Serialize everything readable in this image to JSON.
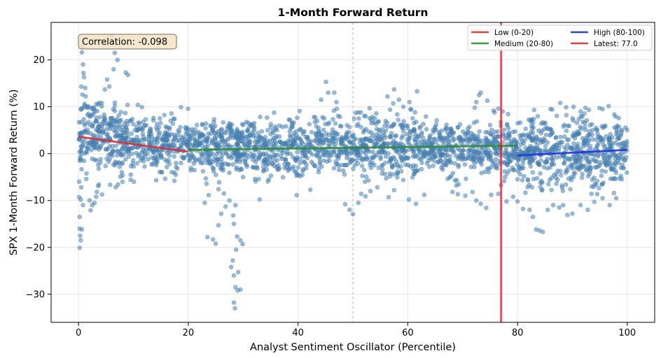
{
  "chart_data": {
    "type": "scatter",
    "title": "1-Month Forward Return",
    "xlabel": "Analyst Sentiment Oscillator (Percentile)",
    "ylabel": "SPX 1-Month Forward Return (%)",
    "xlim": [
      -5,
      105
    ],
    "ylim": [
      -36,
      28
    ],
    "x_ticks": [
      0,
      20,
      40,
      60,
      80,
      100
    ],
    "y_ticks": [
      -30,
      -20,
      -10,
      0,
      10,
      20
    ],
    "grid": true,
    "legend_placement": "upper-right",
    "point_color": "#4682b4",
    "annotation": "Correlation: -0.098",
    "reference_lines": [
      {
        "name": "Latest: 77.0",
        "type": "vertical",
        "x": 77.0,
        "color": "#e31a1c"
      },
      {
        "type": "vertical",
        "x": 50,
        "style": "dashed",
        "color": "#bbbbbb"
      }
    ],
    "trend_lines": [
      {
        "name": "Low (0-20)",
        "color": "#d62f3b",
        "x": [
          0,
          20
        ],
        "y": [
          3.6,
          0.4
        ]
      },
      {
        "name": "Medium (20-80)",
        "color": "#2e8b3a",
        "x": [
          20,
          80
        ],
        "y": [
          0.8,
          1.7
        ]
      },
      {
        "name": "High (80-100)",
        "color": "#2233dd",
        "x": [
          80,
          100
        ],
        "y": [
          -0.4,
          0.8
        ]
      }
    ],
    "legend": [
      {
        "label": "Low (0-20)",
        "color": "#e34040"
      },
      {
        "label": "High (80-100)",
        "color": "#3344cc"
      },
      {
        "label": "Medium (20-80)",
        "color": "#3d9a45"
      },
      {
        "label": "Latest: 77.0",
        "color": "#e34040"
      }
    ],
    "outlier_points": [
      [
        0.2,
        -20.1
      ],
      [
        0.3,
        -17.5
      ],
      [
        0.4,
        -18.5
      ],
      [
        0.2,
        -16.0
      ],
      [
        0.6,
        -16.2
      ],
      [
        0.1,
        -9.3
      ],
      [
        0.4,
        -9.8
      ],
      [
        0.2,
        -13.5
      ],
      [
        0.8,
        -11.0
      ],
      [
        0.1,
        -6.0
      ],
      [
        0.5,
        -7.2
      ],
      [
        0.6,
        21.6
      ],
      [
        0.7,
        22.8
      ],
      [
        0.8,
        19.0
      ],
      [
        0.9,
        17.2
      ],
      [
        1.0,
        16.3
      ],
      [
        1.2,
        14.0
      ],
      [
        1.3,
        12.2
      ],
      [
        1.1,
        10.6
      ],
      [
        0.5,
        14.3
      ],
      [
        0.7,
        12.6
      ],
      [
        6.1,
        25.1
      ],
      [
        6.6,
        21.5
      ],
      [
        7.1,
        20.0
      ],
      [
        6.4,
        18.0
      ],
      [
        8.6,
        17.3
      ],
      [
        9.0,
        16.8
      ],
      [
        5.2,
        15.8
      ],
      [
        5.6,
        14.3
      ],
      [
        4.8,
        13.7
      ],
      [
        2.2,
        -12.1
      ],
      [
        2.5,
        -11.0
      ],
      [
        2.9,
        -10.5
      ],
      [
        2.0,
        -10.0
      ],
      [
        3.2,
        -9.2
      ],
      [
        3.7,
        -6.6
      ],
      [
        10.1,
        -6.0
      ],
      [
        9.5,
        -5.6
      ],
      [
        8.0,
        -6.0
      ],
      [
        7.2,
        -6.6
      ],
      [
        23.0,
        -10.5
      ],
      [
        23.5,
        -17.8
      ],
      [
        24.5,
        -18.3
      ],
      [
        25.0,
        -19.2
      ],
      [
        25.5,
        -15.3
      ],
      [
        26.0,
        -12.8
      ],
      [
        26.8,
        -11.3
      ],
      [
        25.5,
        -7.6
      ],
      [
        26.5,
        -8.5
      ],
      [
        27.5,
        -10.0
      ],
      [
        27.8,
        -24.2
      ],
      [
        28.3,
        -26.0
      ],
      [
        28.6,
        -28.5
      ],
      [
        29.0,
        -29.2
      ],
      [
        29.5,
        -29.0
      ],
      [
        28.3,
        -31.8
      ],
      [
        28.5,
        -33.0
      ],
      [
        29.1,
        -25.3
      ],
      [
        28.1,
        -22.8
      ],
      [
        28.7,
        -20.5
      ],
      [
        29.5,
        -18.5
      ],
      [
        29.9,
        -19.3
      ],
      [
        28.9,
        -17.7
      ],
      [
        28.3,
        -15.0
      ],
      [
        28.2,
        -13.2
      ],
      [
        28.6,
        -11.0
      ],
      [
        33.0,
        -9.8
      ],
      [
        45.1,
        15.3
      ],
      [
        45.5,
        13.0
      ],
      [
        46.6,
        13.0
      ],
      [
        44.2,
        11.5
      ],
      [
        47.0,
        11.0
      ],
      [
        48.6,
        -10.8
      ],
      [
        49.4,
        -12.0
      ],
      [
        50.0,
        -12.9
      ],
      [
        51.0,
        -10.5
      ],
      [
        51.5,
        -8.6
      ],
      [
        52.3,
        -9.1
      ],
      [
        53.2,
        -8.0
      ],
      [
        57.5,
        13.7
      ],
      [
        61.7,
        13.3
      ],
      [
        56.3,
        12.2
      ],
      [
        58.4,
        11.5
      ],
      [
        60.3,
        11.0
      ],
      [
        59.2,
        10.0
      ],
      [
        56.5,
        -9.3
      ],
      [
        57.5,
        -7.8
      ],
      [
        60.2,
        -9.8
      ],
      [
        61.5,
        -10.7
      ],
      [
        63.0,
        -8.8
      ],
      [
        73.0,
        12.5
      ],
      [
        73.3,
        13.0
      ],
      [
        72.5,
        11.0
      ],
      [
        74.5,
        11.3
      ],
      [
        76.5,
        9.6
      ],
      [
        77.3,
        9.0
      ],
      [
        72.2,
        9.8
      ],
      [
        75.8,
        8.8
      ],
      [
        70.5,
        -9.0
      ],
      [
        71.8,
        -8.2
      ],
      [
        72.5,
        -10.0
      ],
      [
        73.3,
        -10.7
      ],
      [
        74.3,
        -11.6
      ],
      [
        75.2,
        -8.8
      ],
      [
        76.5,
        -8.6
      ],
      [
        78.0,
        -10.2
      ],
      [
        79.2,
        -9.2
      ],
      [
        80.0,
        -10.2
      ],
      [
        81.0,
        -11.8
      ],
      [
        82.2,
        -12.0
      ],
      [
        82.8,
        -13.5
      ],
      [
        83.4,
        -16.2
      ],
      [
        84.0,
        -16.4
      ],
      [
        84.6,
        -16.7
      ],
      [
        85.5,
        -12.0
      ],
      [
        86.5,
        -11.0
      ],
      [
        87.6,
        -11.5
      ],
      [
        88.3,
        -11.0
      ],
      [
        89.1,
        -13.1
      ],
      [
        90.0,
        -12.8
      ],
      [
        91.5,
        -11.0
      ],
      [
        92.8,
        -12.0
      ],
      [
        94.0,
        -10.3
      ],
      [
        95.5,
        -9.5
      ],
      [
        96.8,
        -11.0
      ],
      [
        98.0,
        -9.5
      ],
      [
        87.8,
        10.8
      ],
      [
        90.2,
        10.0
      ],
      [
        91.5,
        9.0
      ],
      [
        93.0,
        9.3
      ],
      [
        95.5,
        9.5
      ],
      [
        98.0,
        5.6
      ],
      [
        99.0,
        4.8
      ]
    ]
  },
  "legend_labels": {
    "low": "Low (0-20)",
    "high": "High (80-100)",
    "medium": "Medium (20-80)",
    "latest": "Latest: 77.0"
  }
}
